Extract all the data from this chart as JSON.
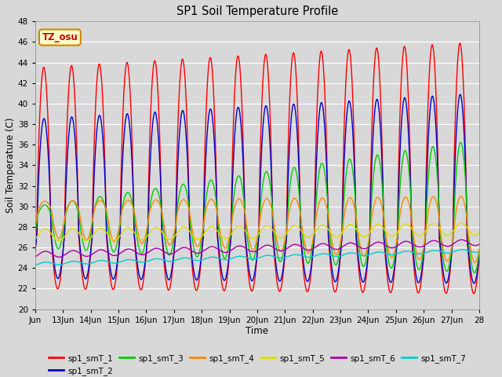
{
  "title": "SP1 Soil Temperature Profile",
  "xlabel": "Time",
  "ylabel": "Soil Temperature (C)",
  "ylim": [
    20,
    48
  ],
  "x_tick_labels": [
    "Jun",
    "13Jun",
    "14Jun",
    "15Jun",
    "16Jun",
    "17Jun",
    "18Jun",
    "19Jun",
    "20Jun",
    "21Jun",
    "22Jun",
    "23Jun",
    "24Jun",
    "25Jun",
    "26Jun",
    "27Jun",
    "28"
  ],
  "annotation": "TZ_osu",
  "annotation_color": "#cc0000",
  "annotation_bg": "#ffffcc",
  "annotation_edge": "#cc8800",
  "bg_color": "#d8d8d8",
  "grid_color": "#ffffff",
  "series": [
    {
      "name": "sp1_smT_1",
      "color": "#ff0000"
    },
    {
      "name": "sp1_smT_2",
      "color": "#0000cc"
    },
    {
      "name": "sp1_smT_3",
      "color": "#00cc00"
    },
    {
      "name": "sp1_smT_4",
      "color": "#ff8800"
    },
    {
      "name": "sp1_smT_5",
      "color": "#dddd00"
    },
    {
      "name": "sp1_smT_6",
      "color": "#aa00aa"
    },
    {
      "name": "sp1_smT_7",
      "color": "#00cccc"
    }
  ]
}
